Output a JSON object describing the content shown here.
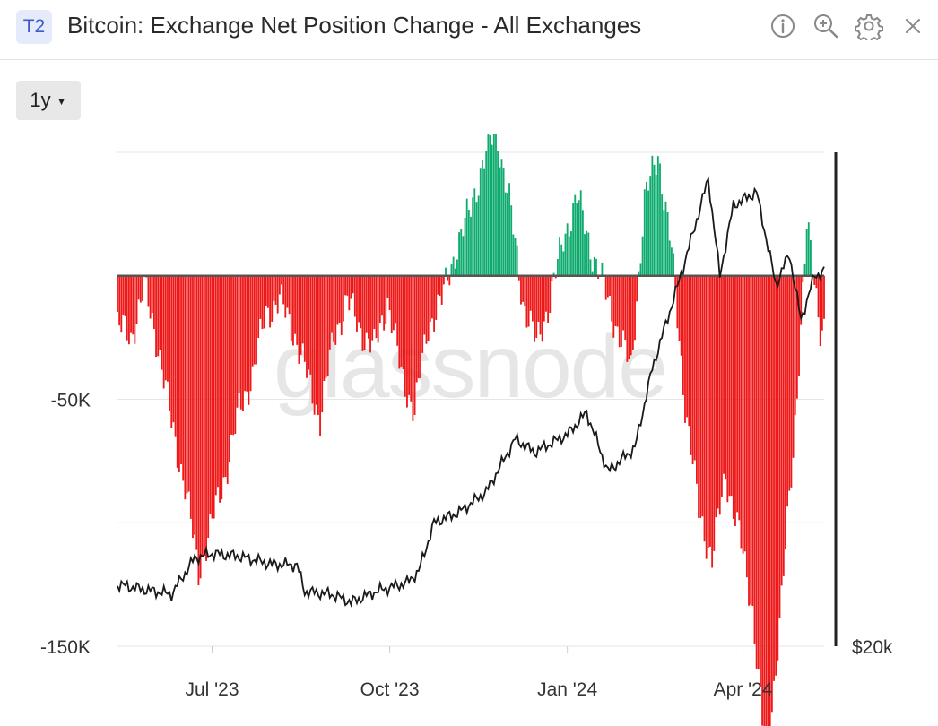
{
  "header": {
    "badge": "T2",
    "title": "Bitcoin: Exchange Net Position Change - All Exchanges",
    "icons": [
      "info-icon",
      "zoom-in-icon",
      "gear-icon",
      "close-icon"
    ]
  },
  "controls": {
    "range_label": "1y"
  },
  "watermark": "glassnode",
  "colors": {
    "positive": "#0eab6e",
    "negative": "#ee1818",
    "price_line": "#1a1a1a",
    "zero_line": "#555555",
    "grid": "#e6e6e6"
  },
  "chart_data": {
    "type": "bar",
    "title": "Bitcoin: Exchange Net Position Change - All Exchanges",
    "x_tick_labels": [
      "Jul '23",
      "Oct '23",
      "Jan '24",
      "Apr '24"
    ],
    "x_tick_dates": [
      "2023-07-01",
      "2023-10-01",
      "2024-01-01",
      "2024-04-01"
    ],
    "x_range": [
      "2023-05-13",
      "2024-05-13"
    ],
    "y_left": {
      "tick_labels": [
        "-50K",
        "-150K"
      ],
      "tick_values": [
        -50000,
        -150000
      ],
      "range": [
        -150000,
        50000
      ]
    },
    "y_right": {
      "tick_labels": [
        "$20k"
      ],
      "tick_values": [
        20000
      ],
      "range": [
        20000,
        76000
      ]
    },
    "grid": true,
    "bar_series": {
      "name": "Exchange Net Position Change",
      "color_rule": "green when positive, red when negative",
      "points": [
        [
          "2023-05-13",
          -20000
        ],
        [
          "2023-05-20",
          -25000
        ],
        [
          "2023-05-27",
          -5000
        ],
        [
          "2023-06-03",
          -28000
        ],
        [
          "2023-06-10",
          -60000
        ],
        [
          "2023-06-17",
          -85000
        ],
        [
          "2023-06-24",
          -120000
        ],
        [
          "2023-07-01",
          -100000
        ],
        [
          "2023-07-08",
          -80000
        ],
        [
          "2023-07-15",
          -55000
        ],
        [
          "2023-07-22",
          -40000
        ],
        [
          "2023-07-29",
          -15000
        ],
        [
          "2023-08-05",
          -10000
        ],
        [
          "2023-08-12",
          -22000
        ],
        [
          "2023-08-19",
          -40000
        ],
        [
          "2023-08-26",
          -58000
        ],
        [
          "2023-09-02",
          -25000
        ],
        [
          "2023-09-09",
          -10000
        ],
        [
          "2023-09-16",
          -22000
        ],
        [
          "2023-09-23",
          -30000
        ],
        [
          "2023-09-30",
          -10000
        ],
        [
          "2023-10-07",
          -40000
        ],
        [
          "2023-10-14",
          -55000
        ],
        [
          "2023-10-21",
          -20000
        ],
        [
          "2023-10-28",
          -10000
        ],
        [
          "2023-11-04",
          10000
        ],
        [
          "2023-11-11",
          25000
        ],
        [
          "2023-11-18",
          45000
        ],
        [
          "2023-11-25",
          60000
        ],
        [
          "2023-12-02",
          30000
        ],
        [
          "2023-12-09",
          -10000
        ],
        [
          "2023-12-16",
          -28000
        ],
        [
          "2023-12-23",
          -10000
        ],
        [
          "2023-12-30",
          15000
        ],
        [
          "2024-01-06",
          32000
        ],
        [
          "2024-01-13",
          12000
        ],
        [
          "2024-01-20",
          -5000
        ],
        [
          "2024-01-27",
          -22000
        ],
        [
          "2024-02-03",
          -38000
        ],
        [
          "2024-02-10",
          30000
        ],
        [
          "2024-02-17",
          50000
        ],
        [
          "2024-02-24",
          10000
        ],
        [
          "2024-03-02",
          -52000
        ],
        [
          "2024-03-09",
          -95000
        ],
        [
          "2024-03-16",
          -115000
        ],
        [
          "2024-03-23",
          -80000
        ],
        [
          "2024-03-30",
          -105000
        ],
        [
          "2024-04-06",
          -135000
        ],
        [
          "2024-04-13",
          -200000
        ],
        [
          "2024-04-20",
          -140000
        ],
        [
          "2024-04-27",
          -72000
        ],
        [
          "2024-05-04",
          20000
        ],
        [
          "2024-05-11",
          -20000
        ]
      ]
    },
    "line_series": {
      "name": "Price",
      "points": [
        [
          "2023-05-13",
          27000
        ],
        [
          "2023-05-25",
          26500
        ],
        [
          "2023-06-10",
          25900
        ],
        [
          "2023-06-22",
          30000
        ],
        [
          "2023-07-01",
          30500
        ],
        [
          "2023-07-15",
          30200
        ],
        [
          "2023-08-01",
          29300
        ],
        [
          "2023-08-14",
          29200
        ],
        [
          "2023-08-18",
          26200
        ],
        [
          "2023-09-01",
          25900
        ],
        [
          "2023-09-11",
          25000
        ],
        [
          "2023-09-25",
          26300
        ],
        [
          "2023-10-10",
          27200
        ],
        [
          "2023-10-16",
          28500
        ],
        [
          "2023-10-24",
          34000
        ],
        [
          "2023-11-06",
          35200
        ],
        [
          "2023-11-20",
          37500
        ],
        [
          "2023-12-05",
          43500
        ],
        [
          "2023-12-15",
          42000
        ],
        [
          "2024-01-01",
          44000
        ],
        [
          "2024-01-11",
          46500
        ],
        [
          "2024-01-22",
          39800
        ],
        [
          "2024-02-05",
          42500
        ],
        [
          "2024-02-14",
          51500
        ],
        [
          "2024-02-28",
          61500
        ],
        [
          "2024-03-05",
          66000
        ],
        [
          "2024-03-14",
          73000
        ],
        [
          "2024-03-20",
          62000
        ],
        [
          "2024-03-27",
          70000
        ],
        [
          "2024-04-08",
          71500
        ],
        [
          "2024-04-18",
          61000
        ],
        [
          "2024-04-25",
          64500
        ],
        [
          "2024-05-01",
          57000
        ],
        [
          "2024-05-08",
          62000
        ],
        [
          "2024-05-13",
          62500
        ]
      ]
    }
  }
}
